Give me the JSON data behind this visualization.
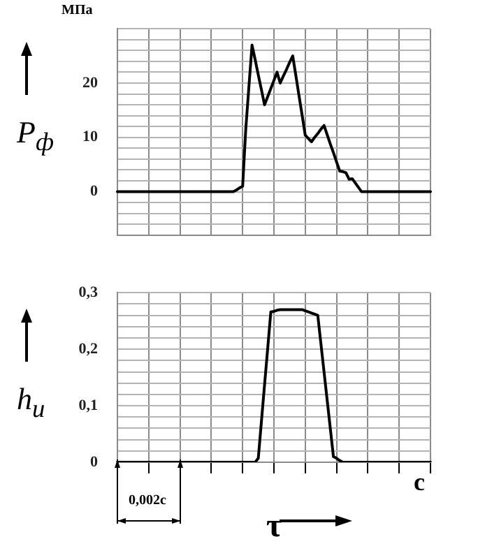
{
  "chart_data": [
    {
      "type": "line",
      "ylabel": "P$_{ф}$",
      "annotations": [
        "МПа"
      ],
      "marker": "none",
      "line_style": "solid",
      "grid": true,
      "tick_labels": "y",
      "categories": [
        null,
        null,
        null,
        null,
        null,
        null,
        null,
        null,
        null,
        null,
        null,
        null,
        null,
        null,
        null,
        null,
        null,
        null,
        null,
        null,
        null,
        null,
        null,
        null,
        null,
        null,
        null,
        null,
        null,
        null,
        null,
        null,
        null,
        null,
        null,
        null,
        null,
        null,
        null,
        null,
        null,
        null,
        null,
        null,
        null,
        null,
        null,
        null,
        null,
        null,
        null,
        null,
        null,
        null,
        null,
        null,
        null,
        null,
        null,
        null,
        null,
        null,
        null,
        null,
        null,
        null,
        null,
        null,
        null,
        null,
        null,
        null,
        null,
        null,
        null,
        null,
        null,
        null,
        null,
        null,
        null,
        null,
        null,
        null,
        null,
        null,
        null,
        null,
        null,
        null,
        null,
        null,
        null,
        null,
        null,
        null,
        null,
        null,
        null,
        null,
        null
      ],
      "series": [
        {
          "color": "#000000",
          "values": [
            0,
            0,
            0,
            0,
            0,
            0,
            0,
            0,
            0,
            0,
            0,
            0,
            0,
            0,
            0,
            0,
            0,
            0,
            0,
            0,
            0,
            0,
            0,
            0,
            0,
            0,
            0,
            0,
            0,
            0,
            0,
            0,
            0,
            0,
            0,
            0,
            0,
            0,
            0.3,
            0.7,
            1,
            11.5,
            19.3,
            27,
            24.3,
            21.5,
            18.8,
            16,
            17.5,
            19,
            20.5,
            22,
            20,
            21.3,
            22.5,
            23.8,
            25,
            21.4,
            17.7,
            14.1,
            10.4,
            9.8,
            9.2,
            10,
            10.7,
            11.5,
            12.2,
            10.5,
            8.8,
            7.2,
            5.5,
            3.8,
            3.7,
            3.5,
            2.3,
            2.4,
            1.6,
            0.8,
            0,
            0,
            0,
            0,
            0,
            0,
            0,
            0,
            0,
            0,
            0,
            0,
            0,
            0,
            0,
            0,
            0,
            0,
            0,
            0,
            0,
            0,
            0
          ]
        }
      ],
      "ylim": [
        -8,
        30
      ],
      "yticks": [
        {
          "value": -8,
          "label": null
        },
        {
          "value": -6,
          "label": null
        },
        {
          "value": -4,
          "label": null
        },
        {
          "value": -2,
          "label": null
        },
        0,
        {
          "value": 2,
          "label": null
        },
        {
          "value": 4,
          "label": null
        },
        {
          "value": 6,
          "label": null
        },
        {
          "value": 8,
          "label": null
        },
        10,
        {
          "value": 12,
          "label": null
        },
        {
          "value": 14,
          "label": null
        },
        {
          "value": 16,
          "label": null
        },
        {
          "value": 18,
          "label": null
        },
        20,
        {
          "value": 22,
          "label": null
        },
        {
          "value": 24,
          "label": null
        },
        {
          "value": 26,
          "label": null
        },
        {
          "value": 28,
          "label": null
        },
        {
          "value": 30,
          "label": null
        }
      ]
    },
    {
      "type": "line",
      "ylabel": "h$_{u}$",
      "xlabel": "τ",
      "annotations": [
        "0,002c",
        "c"
      ],
      "marker": "none",
      "line_style": "solid",
      "grid": true,
      "tick_labels": "y",
      "categories": [
        null,
        null,
        null,
        null,
        null,
        null,
        null,
        null,
        null,
        null,
        null,
        null,
        null,
        null,
        null,
        null,
        null,
        null,
        null,
        null,
        null,
        null,
        null,
        null,
        null,
        null,
        null,
        null,
        null,
        null,
        null,
        null,
        null,
        null,
        null,
        null,
        null,
        null,
        null,
        null,
        null,
        null,
        null,
        null,
        null,
        null,
        null,
        null,
        null,
        null,
        null,
        null,
        null,
        null,
        null,
        null,
        null,
        null,
        null,
        null,
        null,
        null,
        null,
        null,
        null,
        null,
        null,
        null,
        null,
        null,
        null,
        null,
        null,
        null,
        null,
        null,
        null,
        null,
        null,
        null,
        null,
        null,
        null,
        null,
        null,
        null,
        null,
        null,
        null,
        null,
        null,
        null,
        null,
        null,
        null,
        null,
        null,
        null,
        null,
        null,
        null
      ],
      "series": [
        {
          "color": "#000000",
          "values": [
            0,
            0,
            0,
            0,
            0,
            0,
            0,
            0,
            0,
            0,
            0,
            0,
            0,
            0,
            0,
            0,
            0,
            0,
            0,
            0,
            0,
            0,
            0,
            0,
            0,
            0,
            0,
            0,
            0,
            0,
            0,
            0,
            0,
            0,
            0,
            0,
            0,
            0,
            0,
            0,
            0,
            0,
            0,
            0,
            0,
            0.007,
            0.072,
            0.137,
            0.201,
            0.266,
            0.267,
            0.269,
            0.27,
            0.27,
            0.27,
            0.27,
            0.27,
            0.27,
            0.27,
            0.27,
            0.268,
            0.266,
            0.264,
            0.262,
            0.26,
            0.21,
            0.16,
            0.11,
            0.06,
            0.01,
            0.007,
            0.003,
            0,
            0,
            0,
            0,
            0,
            0,
            0,
            0,
            0,
            0,
            0,
            0,
            0,
            0,
            0,
            0,
            0,
            0,
            0,
            0,
            0,
            0,
            0,
            0,
            0,
            0,
            0,
            0,
            0
          ]
        }
      ],
      "ylim": [
        0,
        0.3
      ],
      "yticks": [
        0,
        {
          "value": 0.02,
          "label": null
        },
        {
          "value": 0.04,
          "label": null
        },
        {
          "value": 0.06,
          "label": null
        },
        {
          "value": 0.08,
          "label": null
        },
        {
          "value": 0.1,
          "label": "0,1"
        },
        {
          "value": 0.12,
          "label": null
        },
        {
          "value": 0.14,
          "label": null
        },
        {
          "value": 0.16,
          "label": null
        },
        {
          "value": 0.18,
          "label": null
        },
        {
          "value": 0.2,
          "label": "0,2"
        },
        {
          "value": 0.22,
          "label": null
        },
        {
          "value": 0.24,
          "label": null
        },
        {
          "value": 0.26,
          "label": null
        },
        {
          "value": 0.28,
          "label": null
        },
        {
          "value": 0.3,
          "label": "0,3"
        }
      ]
    }
  ]
}
